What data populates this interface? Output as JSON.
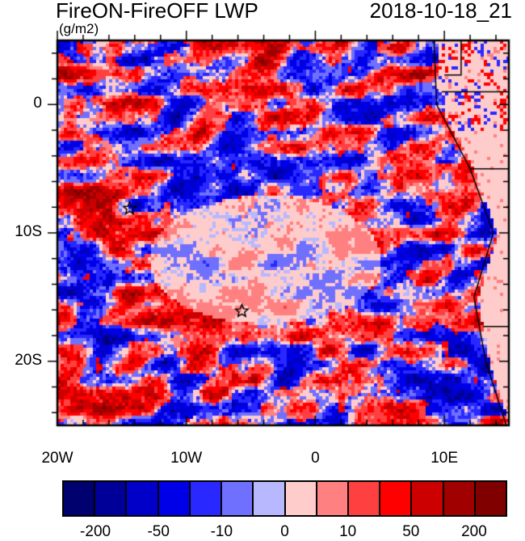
{
  "header": {
    "title": "FireON-FireOFF LWP",
    "date": "2018-10-18_21",
    "units": "(g/m2)"
  },
  "chart_data": {
    "type": "heatmap",
    "title": "FireON-FireOFF LWP",
    "units": "(g/m2)",
    "lon_range": [
      -20,
      15
    ],
    "lat_range": [
      -25,
      5
    ],
    "x_ticks": [
      {
        "value": -20,
        "label": "20W"
      },
      {
        "value": -10,
        "label": "10W"
      },
      {
        "value": 0,
        "label": "0"
      },
      {
        "value": 10,
        "label": "10E"
      }
    ],
    "y_ticks": [
      {
        "value": 0,
        "label": "0"
      },
      {
        "value": -10,
        "label": "10S"
      },
      {
        "value": -20,
        "label": "20S"
      }
    ],
    "markers": [
      {
        "symbol": "star",
        "lon": -14.4,
        "lat": -8.1
      },
      {
        "symbol": "star",
        "lon": -5.7,
        "lat": -16.1
      }
    ],
    "colorbar": {
      "colors": [
        "#00006e",
        "#000099",
        "#0000c8",
        "#0000e8",
        "#2828ff",
        "#7070ff",
        "#b8b8ff",
        "#ffcccc",
        "#ff8080",
        "#ff4040",
        "#ff0000",
        "#cc0000",
        "#a00000",
        "#800000"
      ],
      "labels": [
        "-200",
        "-50",
        "-10",
        "0",
        "10",
        "50",
        "200"
      ]
    }
  }
}
